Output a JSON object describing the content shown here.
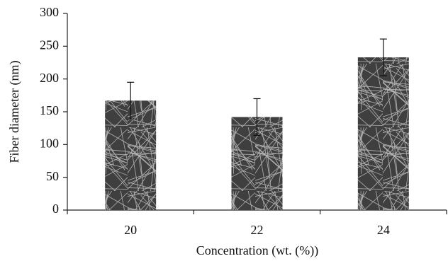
{
  "chart_data": {
    "type": "bar",
    "x_label": "Concentration (wt. (%))",
    "y_label": "Fiber diameter (nm)",
    "categories": [
      "20",
      "22",
      "24"
    ],
    "series": [
      {
        "values": [
          167,
          142,
          233
        ],
        "errors": [
          28,
          28,
          28
        ],
        "color": "#4a4a4a"
      }
    ],
    "ylim": [
      0,
      300
    ],
    "yticks": [
      0,
      50,
      100,
      150,
      200,
      250,
      300
    ]
  }
}
